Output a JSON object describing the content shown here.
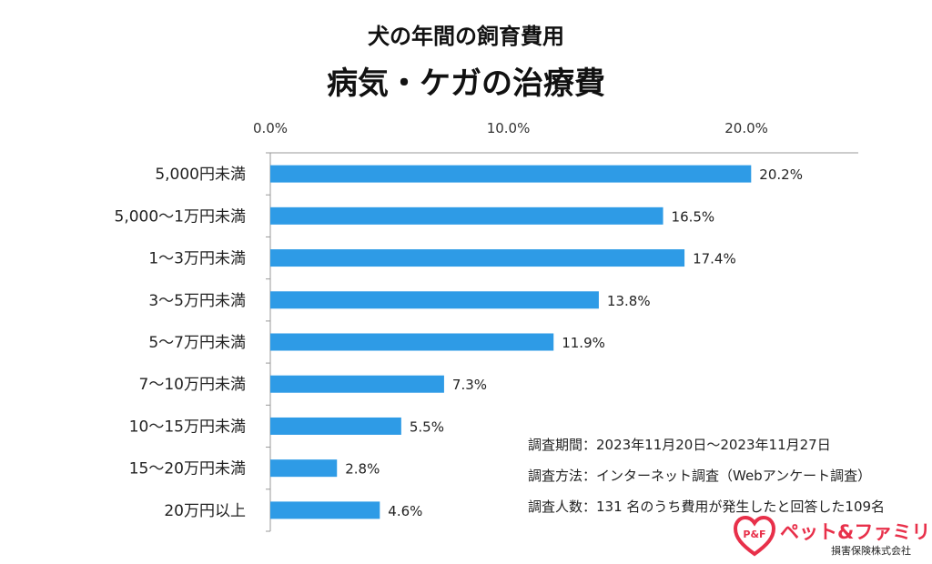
{
  "header": {
    "title": "犬の年間の飼育費用",
    "subtitle": "病気・ケガの治療費"
  },
  "chart_data": {
    "type": "bar",
    "orientation": "horizontal",
    "categories": [
      "5,000円未満",
      "5,000～1万円未満",
      "1～3万円未満",
      "3～5万円未満",
      "5～7万円未満",
      "7～10万円未満",
      "10～15万円未満",
      "15～20万円未満",
      "20万円以上"
    ],
    "values": [
      20.2,
      16.5,
      17.4,
      13.8,
      11.9,
      7.3,
      5.5,
      2.8,
      4.6
    ],
    "value_labels": [
      "20.2%",
      "16.5%",
      "17.4%",
      "13.8%",
      "11.9%",
      "7.3%",
      "5.5%",
      "2.8%",
      "4.6%"
    ],
    "x_ticks": [
      "0.0%",
      "10.0%",
      "20.0%"
    ],
    "x_tick_values": [
      0,
      10,
      20
    ],
    "xlim": [
      0,
      24.7
    ],
    "bar_color": "#2e9be6",
    "axis_position": "top",
    "grid": false
  },
  "notes": [
    "調査期間：2023年11月20日～2023年11月27日",
    "調査方法：インターネット調査（Webアンケート調査）",
    "調査人数：131 名のうち費用が発生したと回答した109名"
  ],
  "logo": {
    "name": "ペット&ファミリー",
    "sub": "損害保険株式会社",
    "mark_text": "P&F",
    "color": "#e8304a"
  }
}
